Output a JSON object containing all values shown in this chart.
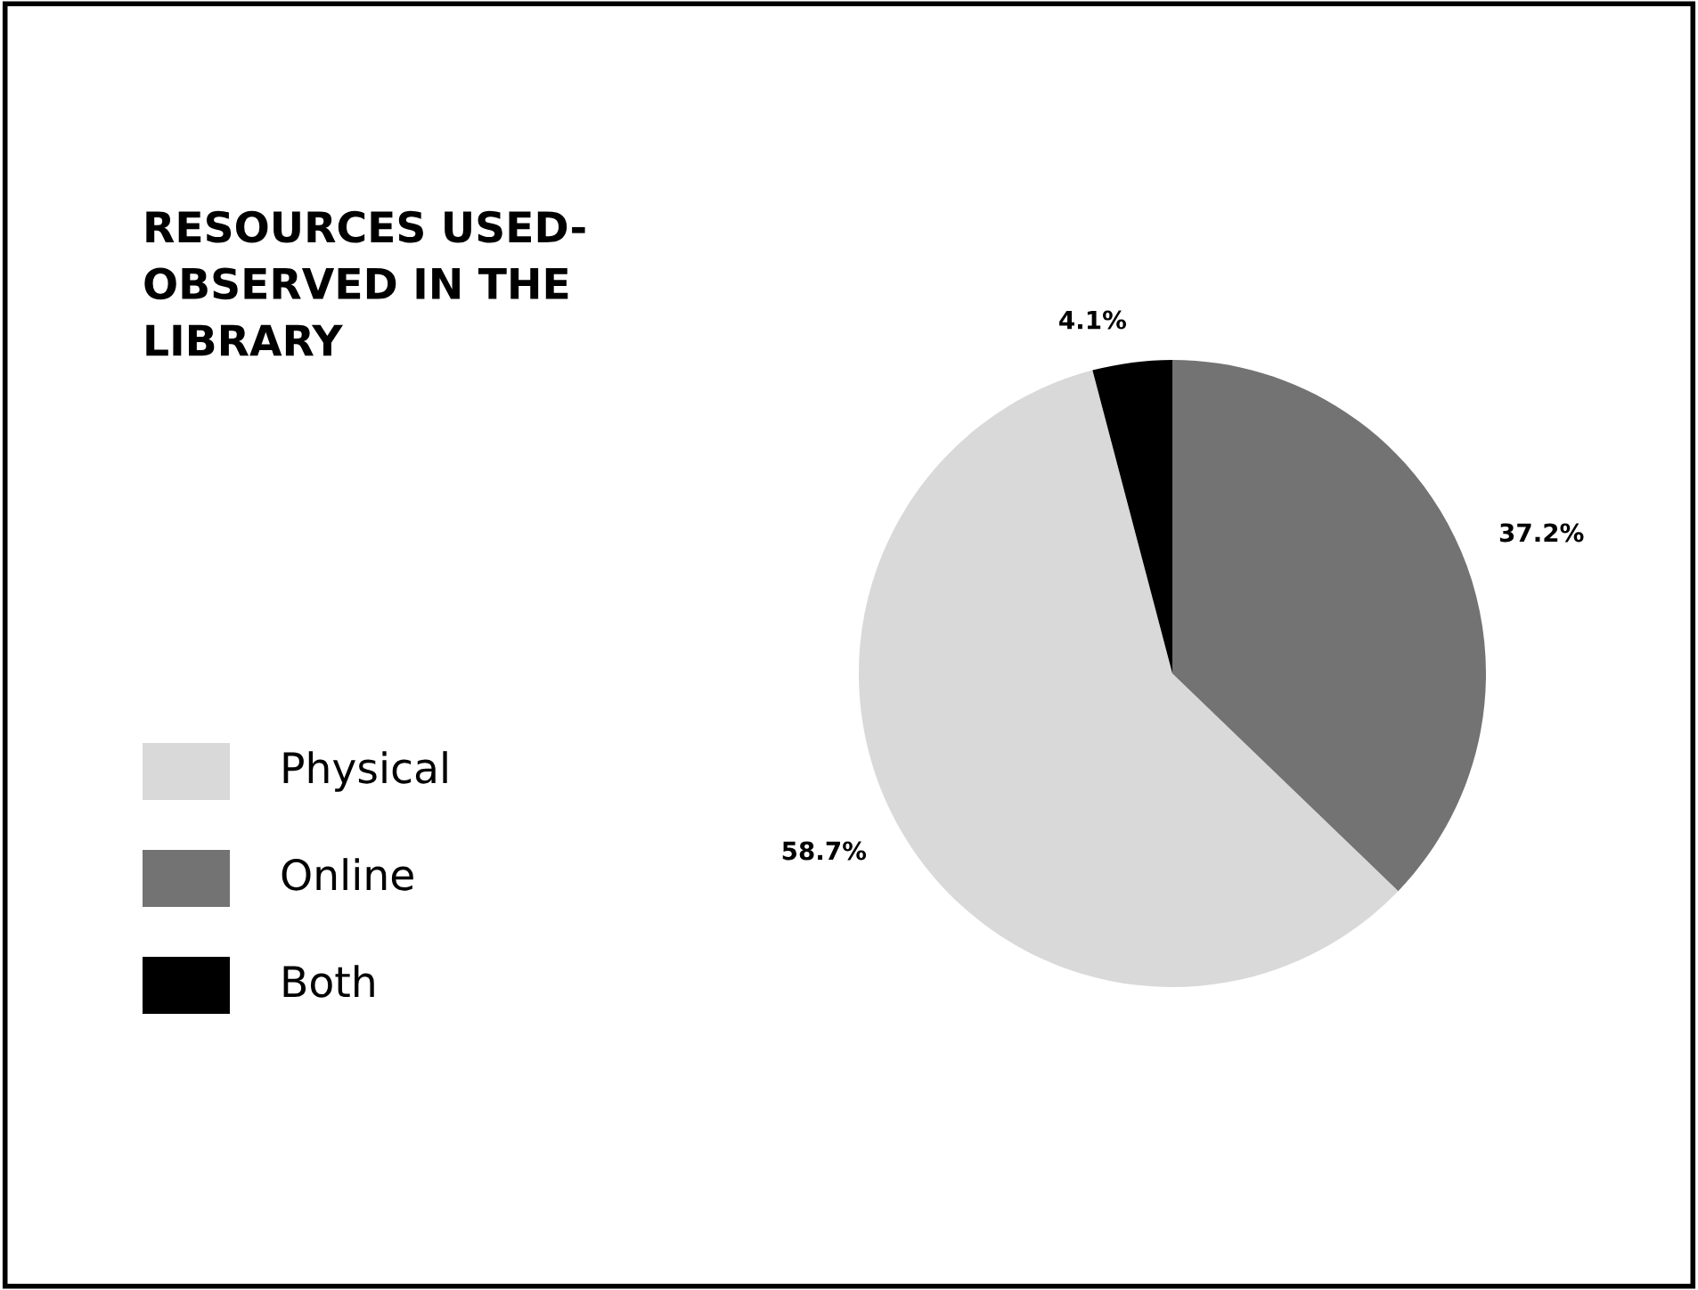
{
  "chart_data": {
    "type": "pie",
    "title": "RESOURCES USED-\nOBSERVED IN THE\nLIBRARY",
    "categories": [
      "Physical",
      "Online",
      "Both"
    ],
    "values": [
      58.7,
      37.2,
      4.1
    ],
    "colors": [
      "#d9d9d9",
      "#737373",
      "#000000"
    ],
    "value_labels": [
      "58.7%",
      "37.2%",
      "4.1%"
    ],
    "legend": "left"
  }
}
